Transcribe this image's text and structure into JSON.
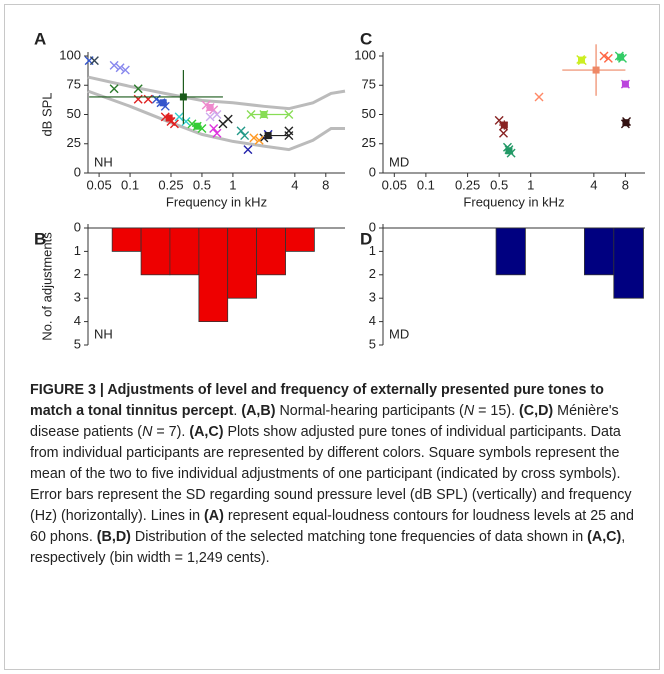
{
  "chart_data": [
    {
      "type": "scatter",
      "panel": "A",
      "group_label": "NH",
      "ylabel": "dB SPL",
      "xlabel": "Frequency in kHz",
      "log_x": true,
      "xlim": [
        0.039,
        12.3
      ],
      "xticks": [
        0.05,
        0.1,
        0.25,
        0.5,
        1,
        4,
        8
      ],
      "ylim": [
        0,
        100
      ],
      "yticks": [
        0,
        25,
        50,
        75,
        100
      ],
      "contour_color": "#bbbbbb",
      "contours": [
        {
          "x": [
            0.039,
            0.1,
            0.25,
            0.5,
            1,
            2,
            3.5,
            6,
            9,
            12.3
          ],
          "values": [
            82,
            74,
            67,
            62,
            60,
            57,
            55,
            60,
            68,
            70
          ]
        },
        {
          "x": [
            0.039,
            0.1,
            0.25,
            0.5,
            1,
            2,
            3.5,
            6,
            9,
            12.3
          ],
          "values": [
            70,
            57,
            43,
            33,
            27,
            23,
            20,
            28,
            38,
            38
          ]
        }
      ],
      "series": [
        {
          "color": "#3355cc",
          "x": [
            0.04,
            0.18,
            0.2,
            0.22
          ],
          "values": [
            96,
            63,
            60,
            57
          ]
        },
        {
          "color": "#334455",
          "x": [
            0.045
          ],
          "values": [
            96
          ]
        },
        {
          "color": "#8888ee",
          "x": [
            0.07,
            0.08,
            0.09
          ],
          "values": [
            92,
            90,
            88
          ]
        },
        {
          "color": "#2a7a2a",
          "x": [
            0.07,
            0.12
          ],
          "values": [
            72,
            72
          ]
        },
        {
          "color": "#e02020",
          "x": [
            0.12,
            0.15,
            0.22,
            0.25,
            0.27
          ],
          "values": [
            63,
            63,
            48,
            44,
            42
          ]
        },
        {
          "color": "#33cccc",
          "x": [
            0.3,
            0.35
          ],
          "values": [
            48,
            44
          ]
        },
        {
          "color": "#33cc33",
          "x": [
            0.4,
            0.45,
            0.5
          ],
          "values": [
            42,
            40,
            38
          ]
        },
        {
          "color": "#ee88cc",
          "x": [
            0.55,
            0.6,
            0.65
          ],
          "values": [
            58,
            56,
            54
          ]
        },
        {
          "color": "#ccaaee",
          "x": [
            0.6,
            0.7
          ],
          "values": [
            48,
            50
          ]
        },
        {
          "color": "#dd33dd",
          "x": [
            0.65,
            0.7
          ],
          "values": [
            38,
            34
          ]
        },
        {
          "color": "#222222",
          "x": [
            0.8,
            0.9,
            2.0,
            3.5,
            3.5
          ],
          "values": [
            42,
            46,
            30,
            36,
            32
          ]
        },
        {
          "color": "#229988",
          "x": [
            1.2,
            1.3
          ],
          "values": [
            36,
            32
          ]
        },
        {
          "color": "#2222aa",
          "x": [
            1.4,
            2.2
          ],
          "values": [
            20,
            33
          ]
        },
        {
          "color": "#88dd55",
          "x": [
            1.5,
            2.0,
            3.5
          ],
          "values": [
            50,
            50,
            50
          ]
        },
        {
          "color": "#ff9922",
          "x": [
            1.6,
            1.8
          ],
          "values": [
            30,
            28
          ]
        }
      ],
      "means": [
        {
          "color": "#1a5a1a",
          "x": 0.33,
          "y": 65,
          "yerr": 23,
          "xlo": 0.04,
          "xhi": 0.8
        },
        {
          "color": "#3355cc",
          "x": 0.21,
          "y": 60,
          "yerr": 3,
          "xlo": 0.18,
          "xhi": 0.23
        },
        {
          "color": "#e02020",
          "x": 0.24,
          "y": 47,
          "yerr": 3,
          "xlo": 0.22,
          "xhi": 0.27
        },
        {
          "color": "#33cc33",
          "x": 0.45,
          "y": 40,
          "yerr": 2,
          "xlo": 0.4,
          "xhi": 0.5
        },
        {
          "color": "#ee88cc",
          "x": 0.6,
          "y": 56,
          "yerr": 2,
          "xlo": 0.55,
          "xhi": 0.65
        },
        {
          "color": "#88dd55",
          "x": 2.0,
          "y": 50,
          "yerr": 1,
          "xlo": 1.5,
          "xhi": 3.5
        },
        {
          "color": "#222222",
          "x": 2.2,
          "y": 32,
          "yerr": 3,
          "xlo": 2.0,
          "xhi": 3.5
        }
      ]
    },
    {
      "type": "histogram",
      "panel": "B",
      "group_label": "NH",
      "ylabel": "No. of adjustments",
      "log_x": true,
      "xlim": [
        0.039,
        12.3
      ],
      "ylim": [
        5,
        0
      ],
      "yticks": [
        0,
        1,
        2,
        3,
        4,
        5
      ],
      "color": "#ee0000",
      "bins": [
        0.067,
        0.128,
        0.244,
        0.467,
        0.89,
        1.7,
        3.25,
        6.2
      ],
      "counts": [
        1,
        2,
        2,
        4,
        3,
        2,
        1
      ]
    },
    {
      "type": "scatter",
      "panel": "C",
      "group_label": "MD",
      "xlabel": "Frequency in kHz",
      "log_x": true,
      "xlim": [
        0.039,
        12.3
      ],
      "xticks": [
        0.05,
        0.1,
        0.25,
        0.5,
        1,
        4,
        8
      ],
      "ylim": [
        0,
        100
      ],
      "yticks": [
        0,
        25,
        50,
        75,
        100
      ],
      "series": [
        {
          "color": "#882222",
          "x": [
            0.5,
            0.55,
            0.55
          ],
          "values": [
            45,
            40,
            34
          ]
        },
        {
          "color": "#229966",
          "x": [
            0.6,
            0.65,
            0.62
          ],
          "values": [
            22,
            17,
            20
          ]
        },
        {
          "color": "#ff8866",
          "x": [
            1.2
          ],
          "values": [
            65
          ]
        },
        {
          "color": "#ff6644",
          "x": [
            5,
            5.5
          ],
          "values": [
            100,
            98
          ]
        },
        {
          "color": "#ccee22",
          "x": [
            3,
            3.1
          ],
          "values": [
            97,
            96
          ]
        },
        {
          "color": "#33cc66",
          "x": [
            7,
            7.5
          ],
          "values": [
            100,
            98
          ]
        },
        {
          "color": "#bb44dd",
          "x": [
            8
          ],
          "values": [
            76
          ]
        },
        {
          "color": "#331111",
          "x": [
            8,
            8.2
          ],
          "values": [
            42,
            44
          ]
        }
      ],
      "means": [
        {
          "color": "#882222",
          "x": 0.56,
          "y": 41,
          "yerr": 4,
          "xlo": 0.5,
          "xhi": 0.6
        },
        {
          "color": "#229966",
          "x": 0.62,
          "y": 19,
          "yerr": 2,
          "xlo": 0.6,
          "xhi": 0.65
        },
        {
          "color": "#ee8866",
          "x": 4.2,
          "y": 88,
          "yerr": 22,
          "xlo": 2,
          "xhi": 8
        },
        {
          "color": "#ccee22",
          "x": 3.05,
          "y": 96.5,
          "yerr": 1,
          "xlo": 3,
          "xhi": 3.1
        },
        {
          "color": "#33cc66",
          "x": 7.2,
          "y": 99,
          "yerr": 1,
          "xlo": 7,
          "xhi": 7.5
        },
        {
          "color": "#bb44dd",
          "x": 8,
          "y": 76,
          "yerr": 1,
          "xlo": 7.8,
          "xhi": 8.2
        },
        {
          "color": "#331111",
          "x": 8.1,
          "y": 43,
          "yerr": 1,
          "xlo": 8,
          "xhi": 8.2
        }
      ]
    },
    {
      "type": "histogram",
      "panel": "D",
      "group_label": "MD",
      "log_x": true,
      "xlim": [
        0.039,
        12.3
      ],
      "ylim": [
        5,
        0
      ],
      "yticks": [
        0,
        1,
        2,
        3,
        4,
        5
      ],
      "color": "#000080",
      "bins": [
        0.467,
        0.89,
        1.7,
        3.25,
        6.2,
        11.9
      ],
      "counts": [
        2,
        0,
        0,
        2,
        3
      ]
    }
  ],
  "caption": [
    {
      "text": "FIGURE 3 | Adjustments of level and frequency of externally presented pure tones to match a tonal tinnitus percept",
      "weight": "bold"
    },
    {
      "text": ". "
    },
    {
      "text": "(A,B)",
      "weight": "bold"
    },
    {
      "text": " Normal-hearing participants ("
    },
    {
      "text": "N",
      "style": "italic"
    },
    {
      "text": " = 15). "
    },
    {
      "text": "(C,D)",
      "weight": "bold"
    },
    {
      "text": " Ménière's disease patients ("
    },
    {
      "text": "N",
      "style": "italic"
    },
    {
      "text": " = 7). "
    },
    {
      "text": "(A,C)",
      "weight": "bold"
    },
    {
      "text": " Plots show adjusted pure tones of individual participants. Data from individual participants are represented by different colors. Square symbols represent the mean of the two to five individual adjustments of one participant (indicated by cross symbols). Error bars represent the SD regarding sound pressure level (dB SPL) (vertically) and frequency (Hz) (horizontally). Lines in "
    },
    {
      "text": "(A)",
      "weight": "bold"
    },
    {
      "text": " represent equal-loudness contours for loudness levels at 25 and 60 phons. "
    },
    {
      "text": "(B,D)",
      "weight": "bold"
    },
    {
      "text": " Distribution of the selected matching tone frequencies of data shown in "
    },
    {
      "text": "(A,C)",
      "weight": "bold"
    },
    {
      "text": ", respectively (bin width = 1,249 cents)."
    }
  ]
}
